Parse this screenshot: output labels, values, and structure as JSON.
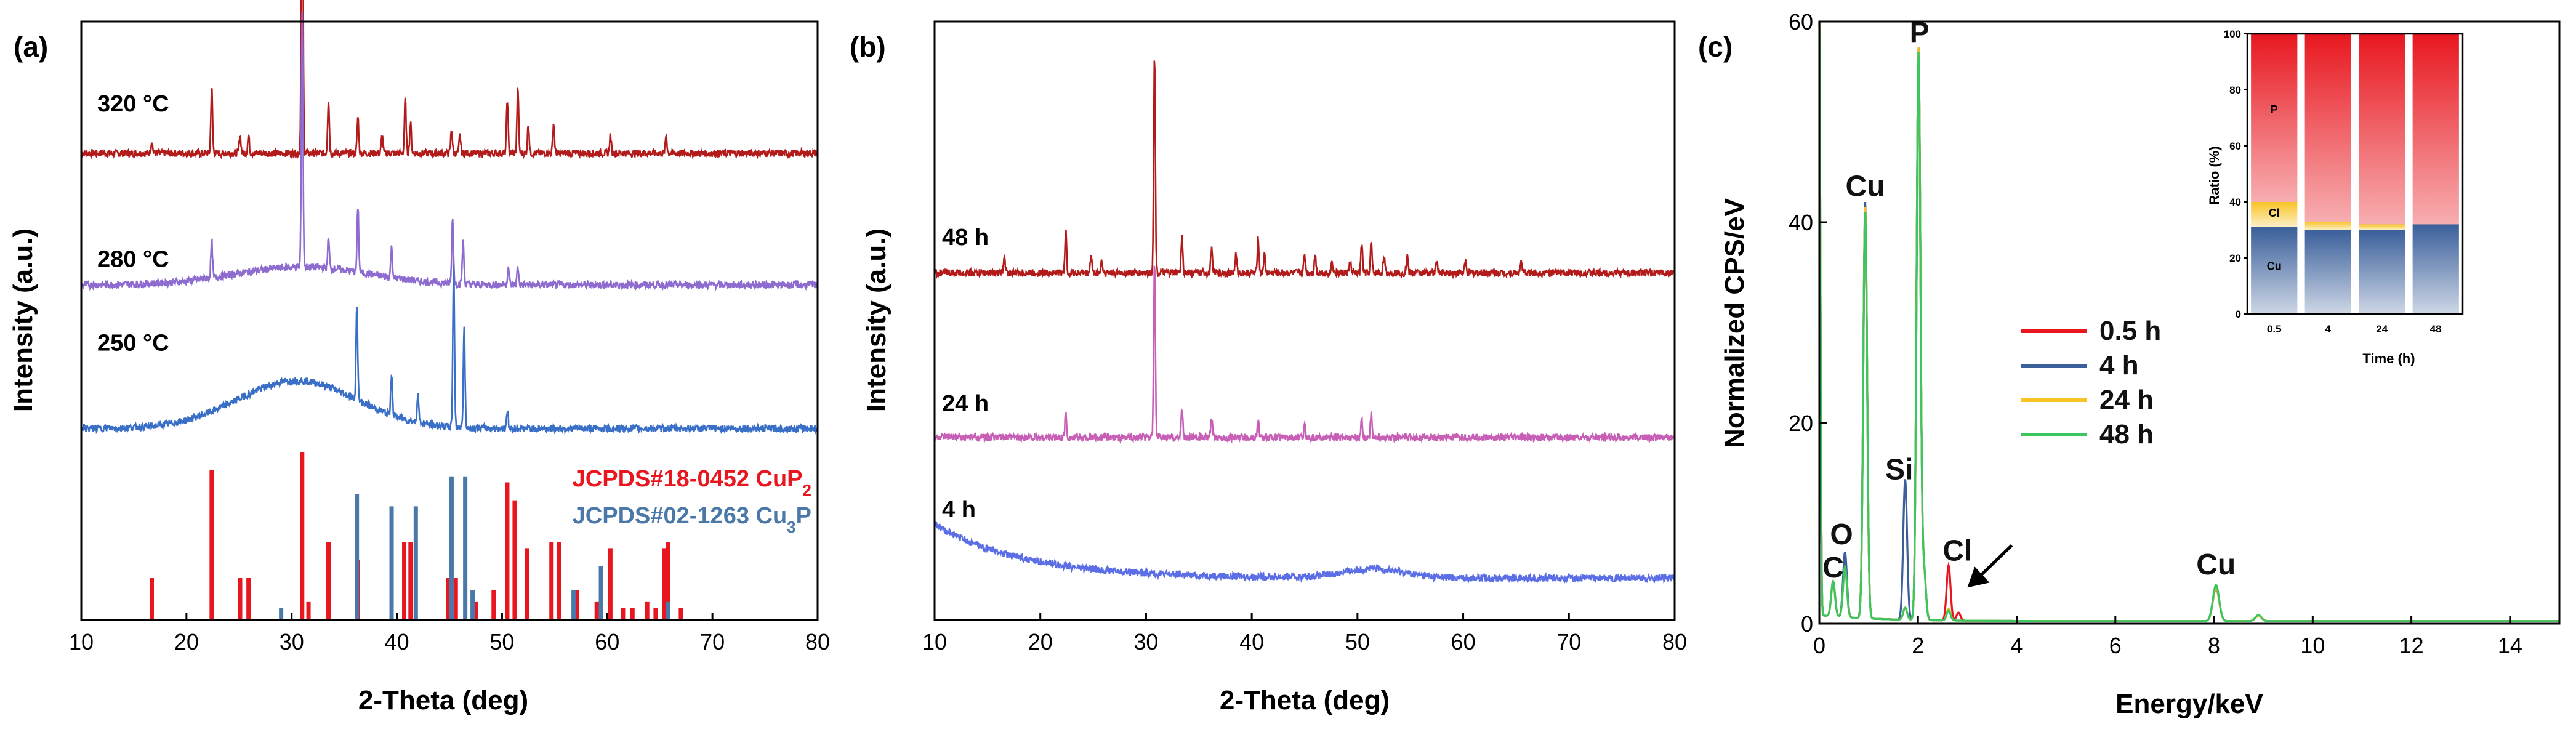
{
  "chart_data": [
    {
      "panel": "(a)",
      "type": "line",
      "xlabel": "2-Theta (deg)",
      "ylabel": "Intensity (a.u.)",
      "xlim": [
        10,
        80
      ],
      "xticks": [
        10,
        20,
        30,
        40,
        50,
        60,
        70,
        80
      ],
      "series": [
        {
          "name": "320 °C",
          "color": "#b31b1b",
          "offset": 0.78,
          "base_height": 0.0,
          "hump": {
            "center": 31,
            "width": 6,
            "height": 0.0
          },
          "peaks": [
            [
              16.7,
              0.02
            ],
            [
              22.4,
              0.11
            ],
            [
              25.1,
              0.03
            ],
            [
              25.9,
              0.03
            ],
            [
              31.0,
              0.62
            ],
            [
              33.5,
              0.09
            ],
            [
              36.3,
              0.06
            ],
            [
              38.6,
              0.03
            ],
            [
              40.8,
              0.09
            ],
            [
              41.3,
              0.05
            ],
            [
              45.2,
              0.04
            ],
            [
              46.0,
              0.03
            ],
            [
              50.5,
              0.09
            ],
            [
              51.5,
              0.11
            ],
            [
              52.5,
              0.05
            ],
            [
              54.9,
              0.05
            ],
            [
              60.3,
              0.03
            ],
            [
              65.6,
              0.03
            ]
          ]
        },
        {
          "name": "280 °C",
          "color": "#8e6bcf",
          "offset": 0.52,
          "base_height": 0.04,
          "hump": {
            "center": 31,
            "width": 9,
            "height": 0.03
          },
          "peaks": [
            [
              22.4,
              0.06
            ],
            [
              31.0,
              0.42
            ],
            [
              33.5,
              0.05
            ],
            [
              36.3,
              0.11
            ],
            [
              39.5,
              0.05
            ],
            [
              45.3,
              0.11
            ],
            [
              46.3,
              0.07
            ],
            [
              50.6,
              0.03
            ],
            [
              51.5,
              0.03
            ]
          ]
        },
        {
          "name": "250 °C",
          "color": "#3a6fc7",
          "offset": 0.31,
          "base_height": 0.01,
          "hump": {
            "center": 30.5,
            "width": 8,
            "height": 0.08
          },
          "peaks": [
            [
              36.2,
              0.16
            ],
            [
              39.5,
              0.07
            ],
            [
              42.0,
              0.05
            ],
            [
              45.4,
              0.27
            ],
            [
              46.4,
              0.17
            ],
            [
              50.5,
              0.03
            ]
          ]
        }
      ],
      "references": [
        {
          "name": "JCPDS#18-0452 CuP",
          "subscript": "2",
          "color": "#e8171f",
          "lines": [
            [
              16.7,
              0.07
            ],
            [
              22.4,
              0.25
            ],
            [
              25.1,
              0.07
            ],
            [
              25.9,
              0.07
            ],
            [
              31.0,
              0.28
            ],
            [
              31.6,
              0.03
            ],
            [
              33.5,
              0.13
            ],
            [
              36.3,
              0.1
            ],
            [
              40.7,
              0.13
            ],
            [
              41.3,
              0.13
            ],
            [
              44.9,
              0.07
            ],
            [
              45.6,
              0.07
            ],
            [
              47.5,
              0.03
            ],
            [
              49.2,
              0.05
            ],
            [
              50.5,
              0.23
            ],
            [
              51.2,
              0.2
            ],
            [
              52.4,
              0.12
            ],
            [
              54.7,
              0.13
            ],
            [
              55.4,
              0.13
            ],
            [
              57.1,
              0.05
            ],
            [
              59.0,
              0.03
            ],
            [
              60.3,
              0.12
            ],
            [
              61.5,
              0.02
            ],
            [
              62.4,
              0.02
            ],
            [
              63.8,
              0.03
            ],
            [
              64.6,
              0.02
            ],
            [
              65.4,
              0.12
            ],
            [
              65.8,
              0.13
            ],
            [
              67.0,
              0.02
            ]
          ]
        },
        {
          "name": "JCPDS#02-1263 Cu",
          "subscript": "3",
          "suffix": "P",
          "color": "#4a78a8",
          "lines": [
            [
              29.0,
              0.02
            ],
            [
              36.2,
              0.21
            ],
            [
              39.5,
              0.19
            ],
            [
              41.8,
              0.19
            ],
            [
              45.2,
              0.24
            ],
            [
              46.5,
              0.24
            ],
            [
              47.2,
              0.05
            ],
            [
              56.8,
              0.05
            ],
            [
              59.4,
              0.09
            ],
            [
              65.8,
              0.03
            ]
          ]
        }
      ]
    },
    {
      "panel": "(b)",
      "type": "line",
      "xlabel": "2-Theta (deg)",
      "ylabel": "Intensity (a.u.)",
      "xlim": [
        10,
        80
      ],
      "xticks": [
        10,
        20,
        30,
        40,
        50,
        60,
        70,
        80
      ],
      "series": [
        {
          "name": "48 h",
          "color": "#b31b1b",
          "offset": 0.58,
          "base_height": 0.0,
          "hump": {
            "center": 31,
            "width": 9,
            "height": 0.0
          },
          "peaks": [
            [
              16.6,
              0.03
            ],
            [
              22.4,
              0.07
            ],
            [
              24.8,
              0.03
            ],
            [
              25.8,
              0.02
            ],
            [
              30.8,
              0.36
            ],
            [
              33.4,
              0.06
            ],
            [
              36.2,
              0.04
            ],
            [
              38.5,
              0.03
            ],
            [
              40.6,
              0.06
            ],
            [
              41.2,
              0.03
            ],
            [
              45.0,
              0.03
            ],
            [
              46.0,
              0.03
            ],
            [
              47.6,
              0.02
            ],
            [
              49.3,
              0.02
            ],
            [
              50.4,
              0.05
            ],
            [
              51.3,
              0.05
            ],
            [
              52.5,
              0.03
            ],
            [
              54.7,
              0.03
            ],
            [
              57.5,
              0.02
            ],
            [
              60.2,
              0.02
            ],
            [
              65.5,
              0.02
            ]
          ]
        },
        {
          "name": "24 h",
          "color": "#c75fb7",
          "offset": 0.305,
          "base_height": 0.0,
          "hump": {
            "center": 31,
            "width": 9,
            "height": 0.0
          },
          "peaks": [
            [
              22.4,
              0.04
            ],
            [
              30.8,
              0.29
            ],
            [
              33.4,
              0.05
            ],
            [
              36.2,
              0.03
            ],
            [
              40.6,
              0.03
            ],
            [
              45.0,
              0.02
            ],
            [
              50.4,
              0.03
            ],
            [
              51.3,
              0.04
            ]
          ]
        },
        {
          "name": "4 h",
          "color": "#5b6ee6",
          "offset": 0.07,
          "base_height": 0.0,
          "decay": {
            "amp": 0.09,
            "rate": 0.12
          },
          "hump": {
            "center": 51.5,
            "width": 4,
            "height": 0.015
          },
          "peaks": []
        }
      ]
    },
    {
      "panel": "(c)",
      "type": "line",
      "xlabel": "Energy/keV",
      "ylabel": "Normalized CPS/eV",
      "xlim": [
        0,
        15
      ],
      "ylim": [
        0,
        60
      ],
      "xticks": [
        0,
        2,
        4,
        6,
        8,
        10,
        12,
        14
      ],
      "yticks": [
        0,
        20,
        40,
        60
      ],
      "series": [
        {
          "name": "0.5 h",
          "color": "#e8171f",
          "peaks": [
            [
              0.0,
              60
            ],
            [
              0.28,
              3.5
            ],
            [
              0.52,
              5.5
            ],
            [
              0.93,
              41
            ],
            [
              1.74,
              1.2
            ],
            [
              2.01,
              57
            ],
            [
              2.12,
              5
            ],
            [
              2.62,
              5.5
            ],
            [
              2.82,
              0.8
            ],
            [
              8.04,
              3.3
            ],
            [
              8.9,
              0.5
            ]
          ]
        },
        {
          "name": "4 h",
          "color": "#3a5f9a",
          "peaks": [
            [
              0.0,
              60
            ],
            [
              0.28,
              3.5
            ],
            [
              0.52,
              6.5
            ],
            [
              0.93,
              41.5
            ],
            [
              1.74,
              14
            ],
            [
              2.01,
              57
            ],
            [
              2.12,
              5
            ],
            [
              2.62,
              1.0
            ],
            [
              8.04,
              3.5
            ],
            [
              8.9,
              0.5
            ]
          ]
        },
        {
          "name": "24 h",
          "color": "#f7c325",
          "peaks": [
            [
              0.0,
              60
            ],
            [
              0.28,
              3.5
            ],
            [
              0.52,
              5.0
            ],
            [
              0.93,
              41
            ],
            [
              1.74,
              1.2
            ],
            [
              2.01,
              57
            ],
            [
              2.12,
              5
            ],
            [
              2.62,
              1.2
            ],
            [
              8.04,
              3.4
            ],
            [
              8.9,
              0.5
            ]
          ]
        },
        {
          "name": "48 h",
          "color": "#3cc75e",
          "peaks": [
            [
              0.0,
              60
            ],
            [
              0.28,
              3.5
            ],
            [
              0.52,
              5.0
            ],
            [
              0.93,
              40.5
            ],
            [
              1.74,
              1.2
            ],
            [
              2.01,
              56.5
            ],
            [
              2.12,
              5
            ],
            [
              2.62,
              1.0
            ],
            [
              8.04,
              3.6
            ],
            [
              8.9,
              0.6
            ]
          ]
        }
      ],
      "annotations": [
        {
          "text": "C",
          "x": 0.28,
          "y": 4.6
        },
        {
          "text": "O",
          "x": 0.45,
          "y": 7.9
        },
        {
          "text": "Cu",
          "x": 0.93,
          "y": 42.6
        },
        {
          "text": "P",
          "x": 2.03,
          "y": 57.9
        },
        {
          "text": "Si",
          "x": 1.62,
          "y": 14.4
        },
        {
          "text": "Cl",
          "x": 2.8,
          "y": 6.3
        },
        {
          "text": "Cu",
          "x": 8.04,
          "y": 4.9
        }
      ],
      "arrow": {
        "from": [
          3.9,
          7.8
        ],
        "to": [
          3.0,
          3.6
        ]
      },
      "legend_position": "center-right",
      "inset": {
        "type": "stacked-bar",
        "xlabel": "Time (h)",
        "ylabel": "Ratio (%)",
        "ylim": [
          0,
          100
        ],
        "yticks": [
          0,
          20,
          40,
          60,
          80,
          100
        ],
        "categories": [
          "0.5",
          "4",
          "24",
          "48"
        ],
        "series": [
          {
            "name": "Cu",
            "color": "#3a5f9a",
            "values": [
              31,
              30,
              30,
              32
            ]
          },
          {
            "name": "Cl",
            "color": "#f7c325",
            "values": [
              9,
              3,
              2,
              0
            ]
          },
          {
            "name": "P",
            "color": "#e8171f",
            "values": [
              60,
              67,
              68,
              68
            ]
          }
        ],
        "segment_labels": [
          {
            "text": "P",
            "category": 0,
            "y": 73
          },
          {
            "text": "Cl",
            "category": 0,
            "y": 36
          },
          {
            "text": "Cu",
            "category": 0,
            "y": 17
          }
        ]
      }
    }
  ]
}
